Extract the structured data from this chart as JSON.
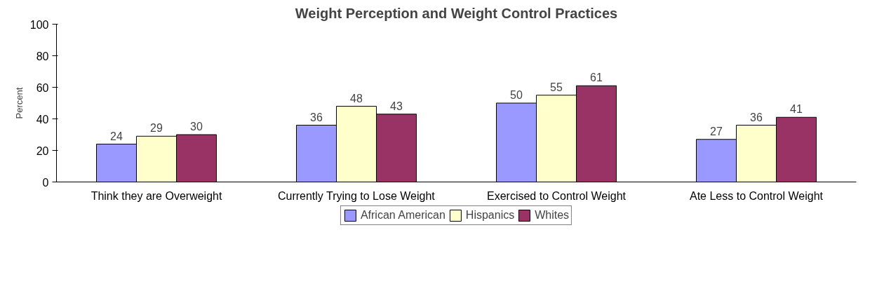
{
  "chart_data": {
    "type": "bar",
    "title": "Weight Perception and Weight Control Practices",
    "ylabel": "Percent",
    "categories": [
      "Think they are Overweight",
      "Currently Trying to Lose Weight",
      "Exercised to Control Weight",
      "Ate Less to Control Weight"
    ],
    "series": [
      {
        "name": "African American",
        "color": "#9999ff",
        "values": [
          24,
          36,
          50,
          27
        ]
      },
      {
        "name": "Hispanics",
        "color": "#ffffcc",
        "values": [
          29,
          48,
          55,
          36
        ]
      },
      {
        "name": "Whites",
        "color": "#993366",
        "values": [
          30,
          43,
          61,
          41
        ]
      }
    ],
    "ylim": [
      0,
      100
    ],
    "yticks": [
      0,
      20,
      40,
      60,
      80,
      100
    ],
    "grid": false,
    "legend": "bottom",
    "data_labels": true
  }
}
